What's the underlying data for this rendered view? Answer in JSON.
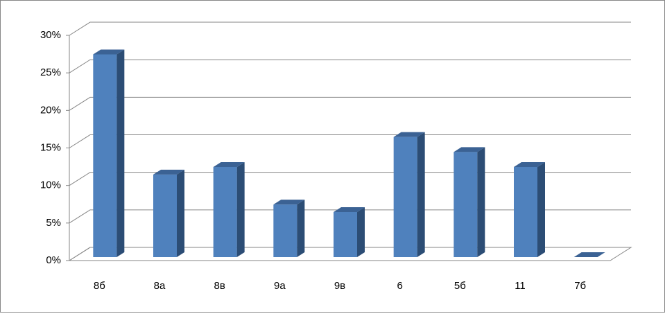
{
  "chart_data": {
    "type": "bar3d",
    "categories": [
      "8б",
      "8а",
      "8в",
      "9а",
      "9в",
      "6",
      "5б",
      "11",
      "7б"
    ],
    "values": [
      27,
      11,
      12,
      7,
      6,
      16,
      14,
      12,
      0
    ],
    "color": "#4f81bd",
    "ylim": [
      0,
      30
    ],
    "yticks": [
      {
        "value": 0,
        "label": "0%"
      },
      {
        "value": 5,
        "label": "5%"
      },
      {
        "value": 10,
        "label": "10%"
      },
      {
        "value": 15,
        "label": "15%"
      },
      {
        "value": 20,
        "label": "20%"
      },
      {
        "value": 25,
        "label": "25%"
      },
      {
        "value": 30,
        "label": "30%"
      }
    ],
    "grid": true
  }
}
